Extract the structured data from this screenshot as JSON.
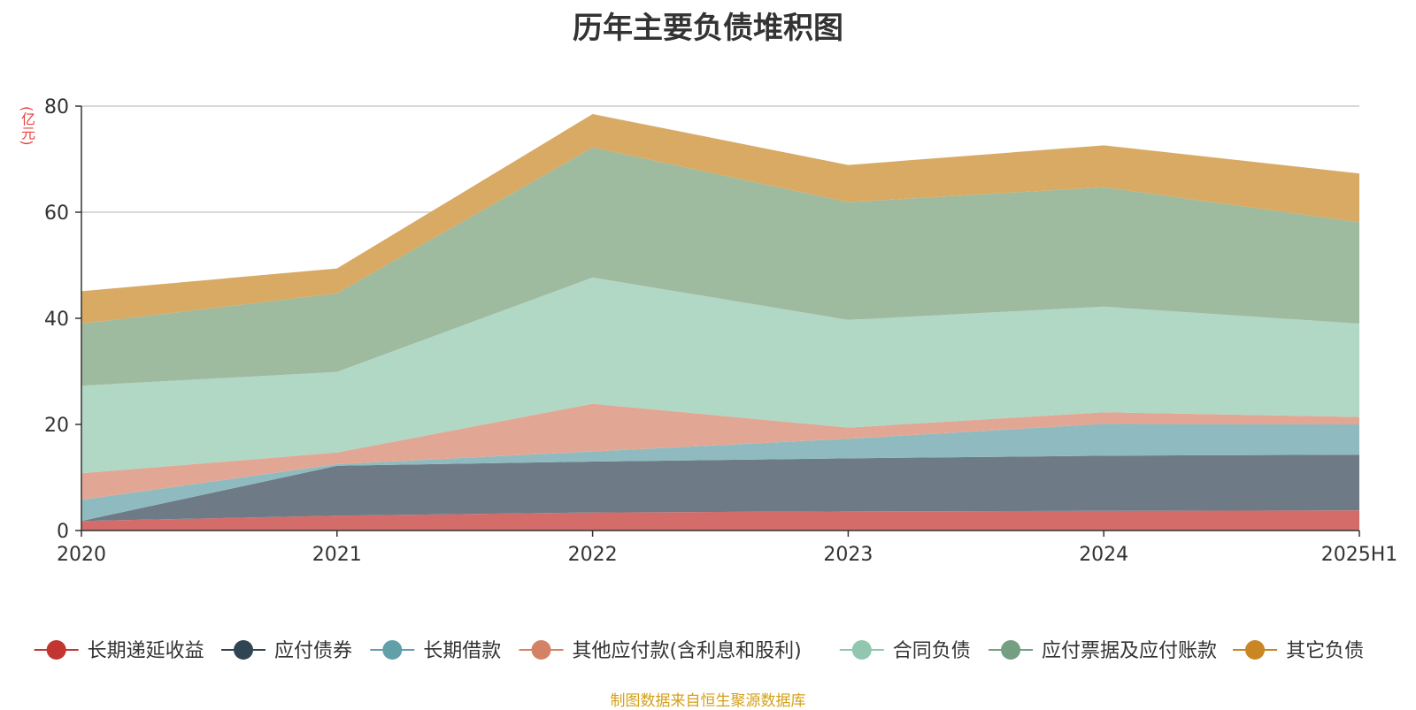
{
  "chart_data": {
    "type": "area",
    "title": "历年主要负债堆积图",
    "unit_label": "(亿元)",
    "source_note": "制图数据来自恒生聚源数据库",
    "categories": [
      "2020",
      "2021",
      "2022",
      "2023",
      "2024",
      "2025H1"
    ],
    "ylim": [
      0,
      80
    ],
    "yticks": [
      "0",
      "20",
      "40",
      "60",
      "80"
    ],
    "stacked": true,
    "grid": true,
    "legend_position": "bottom",
    "series": [
      {
        "name": "长期递延收益",
        "color": "#c23531",
        "area_color": "#d46d6a",
        "values": [
          1.8,
          2.8,
          3.4,
          3.6,
          3.7,
          3.8
        ]
      },
      {
        "name": "应付债券",
        "color": "#2f4554",
        "area_color": "#6e7b87",
        "values": [
          0,
          9.4,
          9.6,
          10.0,
          10.4,
          10.5
        ]
      },
      {
        "name": "长期借款",
        "color": "#61a0a8",
        "area_color": "#8fbbc0",
        "values": [
          4.0,
          0.3,
          1.9,
          3.7,
          6.0,
          5.7
        ]
      },
      {
        "name": "其他应付款(含利息和股利)",
        "color": "#d48265",
        "area_color": "#e2a794",
        "values": [
          5.0,
          2.2,
          9.0,
          2.1,
          2.2,
          1.4
        ]
      },
      {
        "name": "合同负债",
        "color": "#91c7ae",
        "area_color": "#b1d7c5",
        "values": [
          16.5,
          15.2,
          23.8,
          20.3,
          19.9,
          17.6
        ]
      },
      {
        "name": "应付票据及应付账款",
        "color": "#749f83",
        "area_color": "#9eba9f",
        "values": [
          11.7,
          14.8,
          24.5,
          22.2,
          22.5,
          19.1
        ]
      },
      {
        "name": "其它负债",
        "color": "#ca8622",
        "area_color": "#d8aa64",
        "values": [
          6.1,
          4.7,
          6.3,
          7.0,
          7.9,
          9.2
        ]
      }
    ]
  }
}
